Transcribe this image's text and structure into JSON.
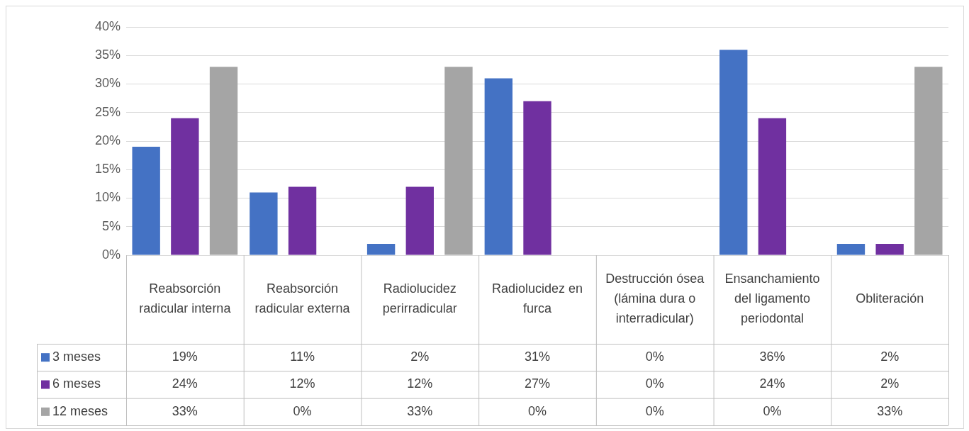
{
  "chart_data": {
    "type": "bar",
    "categories": [
      "Reabsorción radicular interna",
      "Reabsorción radicular externa",
      "Radiolucidez perirradicular",
      "Radiolucidez en furca",
      "Destrucción ósea (lámina dura o interradicular)",
      "Ensanchamiento del ligamento periodontal",
      "Obliteración"
    ],
    "series": [
      {
        "name": "3 meses",
        "color": "#4472c4",
        "values": [
          19,
          11,
          2,
          31,
          0,
          36,
          2
        ],
        "value_labels": [
          "19%",
          "11%",
          "2%",
          "31%",
          "0%",
          "36%",
          "2%"
        ]
      },
      {
        "name": "6 meses",
        "color": "#7030a0",
        "values": [
          24,
          12,
          12,
          27,
          0,
          24,
          2
        ],
        "value_labels": [
          "24%",
          "12%",
          "12%",
          "27%",
          "0%",
          "24%",
          "2%"
        ]
      },
      {
        "name": "12 meses",
        "color": "#a5a5a5",
        "values": [
          33,
          0,
          33,
          0,
          0,
          0,
          33
        ],
        "value_labels": [
          "33%",
          "0%",
          "33%",
          "0%",
          "0%",
          "0%",
          "33%"
        ]
      }
    ],
    "ylim": [
      0,
      40
    ],
    "yticks": [
      {
        "value": 0,
        "label": "0%"
      },
      {
        "value": 5,
        "label": "5%"
      },
      {
        "value": 10,
        "label": "10%"
      },
      {
        "value": 15,
        "label": "15%"
      },
      {
        "value": 20,
        "label": "20%"
      },
      {
        "value": 25,
        "label": "25%"
      },
      {
        "value": 30,
        "label": "30%"
      },
      {
        "value": 35,
        "label": "35%"
      },
      {
        "value": 40,
        "label": "40%"
      }
    ],
    "grid": "y",
    "legend": "bottom left"
  }
}
